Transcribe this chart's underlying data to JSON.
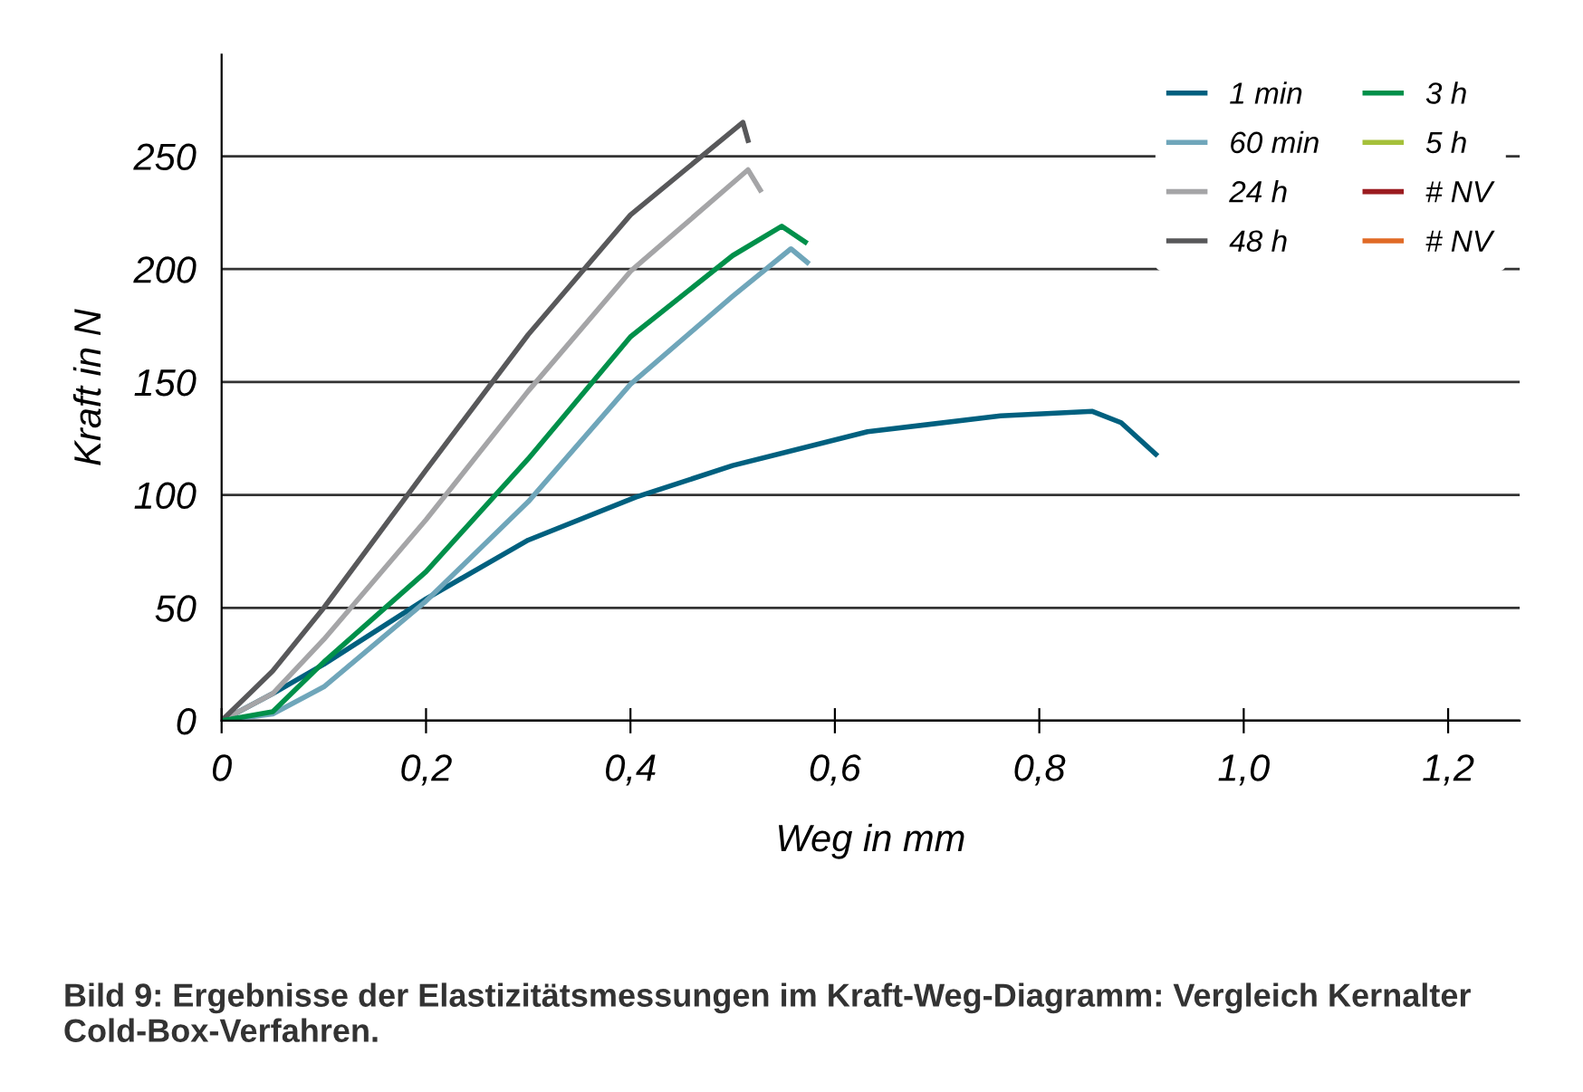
{
  "chart_data": {
    "type": "line",
    "xlabel": "Weg in mm",
    "ylabel": "Kraft in N",
    "xlim": [
      0,
      1.27
    ],
    "ylim": [
      0,
      295
    ],
    "xticks": [
      0,
      {
        "value": 0.2,
        "label": "0,2"
      },
      {
        "value": 0.4,
        "label": "0,4"
      },
      {
        "value": 0.6,
        "label": "0,6"
      },
      {
        "value": 0.8,
        "label": "0,8"
      },
      {
        "value": 1.0,
        "label": "1,0"
      },
      {
        "value": 1.2,
        "label": "1,2"
      }
    ],
    "yticks": [
      0,
      50,
      100,
      150,
      200,
      250
    ],
    "grid": "y",
    "legend": "top right",
    "marker": "none",
    "line_style": "solid",
    "series": [
      {
        "name": "1 min",
        "color": "#00607f",
        "x": [
          0,
          0.05,
          0.1,
          0.2,
          0.3,
          0.405,
          0.5,
          0.632,
          0.762,
          0.852,
          0.88,
          0.914
        ],
        "values": [
          0,
          12,
          25,
          54,
          80,
          99,
          113,
          128,
          135,
          137,
          132,
          118
        ]
      },
      {
        "name": "60 min",
        "color": "#6fa6ba",
        "x": [
          0,
          0.05,
          0.1,
          0.2,
          0.3,
          0.4,
          0.5,
          0.557,
          0.573
        ],
        "values": [
          0,
          3,
          15,
          53,
          97,
          149,
          188,
          209,
          203
        ]
      },
      {
        "name": "24 h",
        "color": "#a5a5a7",
        "x": [
          0,
          0.05,
          0.1,
          0.2,
          0.3,
          0.4,
          0.515,
          0.527
        ],
        "values": [
          0,
          12,
          36,
          89,
          146,
          199,
          244,
          235
        ]
      },
      {
        "name": "48 h",
        "color": "#58585a",
        "x": [
          0,
          0.05,
          0.1,
          0.2,
          0.3,
          0.4,
          0.51,
          0.515
        ],
        "values": [
          0,
          22,
          50,
          111,
          171,
          224,
          265,
          257
        ]
      },
      {
        "name": "3 h",
        "color": "#00904a",
        "x": [
          0,
          0.05,
          0.1,
          0.2,
          0.3,
          0.4,
          0.5,
          0.548,
          0.571
        ],
        "values": [
          0,
          4,
          26,
          66,
          116,
          170,
          206,
          219,
          212
        ]
      },
      {
        "name": "5 h",
        "color": "#a5c03a"
      },
      {
        "name": "# NV",
        "color": "#9b1c20"
      },
      {
        "name": "# NV",
        "color": "#e06a26"
      }
    ],
    "annotations": [
      "Bild 9: Ergebnisse der Elastizitätsmessungen im Kraft-Weg-Diagramm: Vergleich Kernalter Cold-Box-Verfahren."
    ]
  }
}
